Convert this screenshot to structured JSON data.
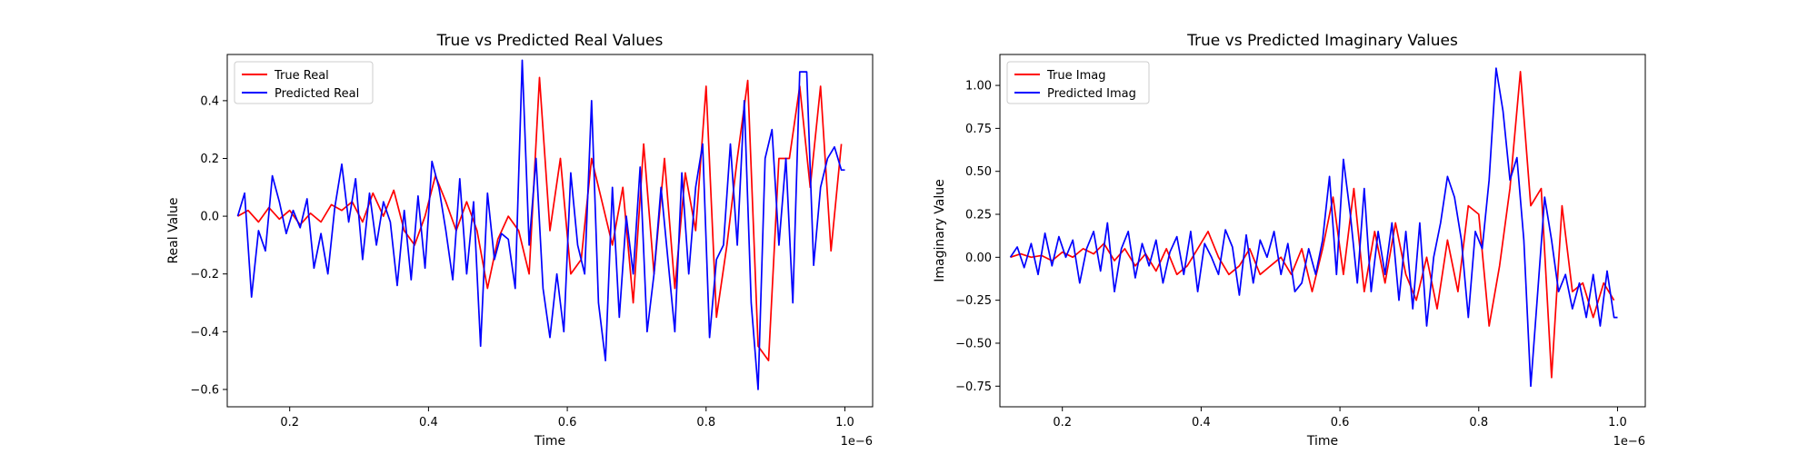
{
  "chart_data": [
    {
      "type": "line",
      "title": "True vs Predicted Real Values",
      "xlabel": "Time",
      "ylabel": "Real Value",
      "x_offset_text": "1e−6",
      "xlim": [
        0.11,
        1.04
      ],
      "ylim": [
        -0.66,
        0.56
      ],
      "xticks": [
        0.2,
        0.4,
        0.6,
        0.8,
        1.0
      ],
      "xtick_labels": [
        "0.2",
        "0.4",
        "0.6",
        "0.8",
        "1.0"
      ],
      "yticks": [
        -0.6,
        -0.4,
        -0.2,
        0.0,
        0.2,
        0.4
      ],
      "ytick_labels": [
        "−0.6",
        "−0.4",
        "−0.2",
        "0.0",
        "0.2",
        "0.4"
      ],
      "legend_position": "upper-left",
      "series": [
        {
          "name": "True Real",
          "color": "#ff0000",
          "x": [
            0.125,
            0.14,
            0.155,
            0.17,
            0.185,
            0.2,
            0.215,
            0.23,
            0.245,
            0.26,
            0.275,
            0.29,
            0.305,
            0.32,
            0.335,
            0.35,
            0.365,
            0.38,
            0.395,
            0.41,
            0.425,
            0.44,
            0.455,
            0.47,
            0.485,
            0.5,
            0.515,
            0.53,
            0.545,
            0.56,
            0.575,
            0.59,
            0.605,
            0.62,
            0.635,
            0.65,
            0.665,
            0.68,
            0.695,
            0.71,
            0.725,
            0.74,
            0.755,
            0.77,
            0.785,
            0.8,
            0.815,
            0.83,
            0.845,
            0.86,
            0.875,
            0.89,
            0.905,
            0.92,
            0.935,
            0.95,
            0.965,
            0.98,
            0.995
          ],
          "values": [
            0.0,
            0.02,
            -0.02,
            0.03,
            -0.01,
            0.02,
            -0.03,
            0.01,
            -0.02,
            0.04,
            0.02,
            0.05,
            -0.02,
            0.08,
            0.0,
            0.09,
            -0.05,
            -0.1,
            0.0,
            0.14,
            0.05,
            -0.05,
            0.05,
            -0.05,
            -0.25,
            -0.08,
            0.0,
            -0.05,
            -0.2,
            0.48,
            -0.05,
            0.2,
            -0.2,
            -0.15,
            0.2,
            0.05,
            -0.1,
            0.1,
            -0.3,
            0.25,
            -0.2,
            0.2,
            -0.25,
            0.15,
            -0.05,
            0.45,
            -0.35,
            -0.1,
            0.2,
            0.47,
            -0.45,
            -0.5,
            0.2,
            0.2,
            0.45,
            0.1,
            0.45,
            -0.12,
            0.25
          ]
        },
        {
          "name": "Predicted Real",
          "color": "#0000ff",
          "x": [
            0.125,
            0.135,
            0.145,
            0.155,
            0.165,
            0.175,
            0.185,
            0.195,
            0.205,
            0.215,
            0.225,
            0.235,
            0.245,
            0.255,
            0.265,
            0.275,
            0.285,
            0.295,
            0.305,
            0.315,
            0.325,
            0.335,
            0.345,
            0.355,
            0.365,
            0.375,
            0.385,
            0.395,
            0.405,
            0.415,
            0.425,
            0.435,
            0.445,
            0.455,
            0.465,
            0.475,
            0.485,
            0.495,
            0.505,
            0.515,
            0.525,
            0.535,
            0.545,
            0.555,
            0.565,
            0.575,
            0.585,
            0.595,
            0.605,
            0.615,
            0.625,
            0.635,
            0.645,
            0.655,
            0.665,
            0.675,
            0.685,
            0.695,
            0.705,
            0.715,
            0.725,
            0.735,
            0.745,
            0.755,
            0.765,
            0.775,
            0.785,
            0.795,
            0.805,
            0.815,
            0.825,
            0.835,
            0.845,
            0.855,
            0.865,
            0.875,
            0.885,
            0.895,
            0.905,
            0.915,
            0.925,
            0.935,
            0.945,
            0.955,
            0.965,
            0.975,
            0.985,
            0.995,
            1.0
          ],
          "values": [
            0.0,
            0.08,
            -0.28,
            -0.05,
            -0.12,
            0.14,
            0.05,
            -0.06,
            0.02,
            -0.04,
            0.06,
            -0.18,
            -0.06,
            -0.2,
            0.03,
            0.18,
            -0.02,
            0.13,
            -0.15,
            0.08,
            -0.1,
            0.05,
            -0.02,
            -0.24,
            0.02,
            -0.22,
            0.07,
            -0.18,
            0.19,
            0.1,
            -0.05,
            -0.22,
            0.13,
            -0.2,
            0.05,
            -0.45,
            0.08,
            -0.15,
            -0.06,
            -0.08,
            -0.25,
            0.54,
            -0.1,
            0.2,
            -0.25,
            -0.42,
            -0.2,
            -0.4,
            0.15,
            -0.1,
            -0.2,
            0.4,
            -0.3,
            -0.5,
            0.1,
            -0.35,
            0.0,
            -0.2,
            0.17,
            -0.4,
            -0.2,
            0.1,
            -0.15,
            -0.4,
            0.15,
            -0.2,
            0.1,
            0.25,
            -0.42,
            -0.15,
            -0.1,
            0.25,
            -0.1,
            0.4,
            -0.3,
            -0.6,
            0.2,
            0.3,
            -0.1,
            0.2,
            -0.3,
            0.5,
            0.5,
            -0.17,
            0.1,
            0.2,
            0.24,
            0.16,
            0.16
          ]
        }
      ]
    },
    {
      "type": "line",
      "title": "True vs Predicted Imaginary Values",
      "xlabel": "Time",
      "ylabel": "Imaginary Value",
      "x_offset_text": "1e−6",
      "xlim": [
        0.11,
        1.04
      ],
      "ylim": [
        -0.87,
        1.18
      ],
      "xticks": [
        0.2,
        0.4,
        0.6,
        0.8,
        1.0
      ],
      "xtick_labels": [
        "0.2",
        "0.4",
        "0.6",
        "0.8",
        "1.0"
      ],
      "yticks": [
        -0.75,
        -0.5,
        -0.25,
        0.0,
        0.25,
        0.5,
        0.75,
        1.0
      ],
      "ytick_labels": [
        "−0.75",
        "−0.50",
        "−0.25",
        "0.00",
        "0.25",
        "0.50",
        "0.75",
        "1.00"
      ],
      "legend_position": "upper-left",
      "series": [
        {
          "name": "True Imag",
          "color": "#ff0000",
          "x": [
            0.125,
            0.14,
            0.155,
            0.17,
            0.185,
            0.2,
            0.215,
            0.23,
            0.245,
            0.26,
            0.275,
            0.29,
            0.305,
            0.32,
            0.335,
            0.35,
            0.365,
            0.38,
            0.395,
            0.41,
            0.425,
            0.44,
            0.455,
            0.47,
            0.485,
            0.5,
            0.515,
            0.53,
            0.545,
            0.56,
            0.575,
            0.59,
            0.605,
            0.62,
            0.635,
            0.65,
            0.665,
            0.68,
            0.695,
            0.71,
            0.725,
            0.74,
            0.755,
            0.77,
            0.785,
            0.8,
            0.815,
            0.83,
            0.845,
            0.86,
            0.875,
            0.89,
            0.905,
            0.92,
            0.935,
            0.95,
            0.965,
            0.98,
            0.995
          ],
          "values": [
            0.0,
            0.02,
            0.0,
            0.01,
            -0.02,
            0.03,
            0.0,
            0.05,
            0.02,
            0.08,
            -0.02,
            0.05,
            -0.05,
            0.02,
            -0.08,
            0.05,
            -0.1,
            -0.05,
            0.05,
            0.15,
            0.0,
            -0.1,
            -0.05,
            0.05,
            -0.1,
            -0.05,
            0.0,
            -0.1,
            0.05,
            -0.2,
            0.05,
            0.35,
            -0.1,
            0.4,
            -0.2,
            0.15,
            -0.15,
            0.2,
            -0.1,
            -0.25,
            0.0,
            -0.3,
            0.1,
            -0.2,
            0.3,
            0.25,
            -0.4,
            -0.05,
            0.4,
            1.08,
            0.3,
            0.4,
            -0.7,
            0.3,
            -0.2,
            -0.15,
            -0.35,
            -0.15,
            -0.25
          ]
        },
        {
          "name": "Predicted Imag",
          "color": "#0000ff",
          "x": [
            0.125,
            0.135,
            0.145,
            0.155,
            0.165,
            0.175,
            0.185,
            0.195,
            0.205,
            0.215,
            0.225,
            0.235,
            0.245,
            0.255,
            0.265,
            0.275,
            0.285,
            0.295,
            0.305,
            0.315,
            0.325,
            0.335,
            0.345,
            0.355,
            0.365,
            0.375,
            0.385,
            0.395,
            0.405,
            0.415,
            0.425,
            0.435,
            0.445,
            0.455,
            0.465,
            0.475,
            0.485,
            0.495,
            0.505,
            0.515,
            0.525,
            0.535,
            0.545,
            0.555,
            0.565,
            0.575,
            0.585,
            0.595,
            0.605,
            0.615,
            0.625,
            0.635,
            0.645,
            0.655,
            0.665,
            0.675,
            0.685,
            0.695,
            0.705,
            0.715,
            0.725,
            0.735,
            0.745,
            0.755,
            0.765,
            0.775,
            0.785,
            0.795,
            0.805,
            0.815,
            0.825,
            0.835,
            0.845,
            0.855,
            0.865,
            0.875,
            0.885,
            0.895,
            0.905,
            0.915,
            0.925,
            0.935,
            0.945,
            0.955,
            0.965,
            0.975,
            0.985,
            0.995,
            1.0
          ],
          "values": [
            0.0,
            0.06,
            -0.06,
            0.08,
            -0.1,
            0.14,
            -0.05,
            0.12,
            0.0,
            0.1,
            -0.15,
            0.05,
            0.15,
            -0.08,
            0.2,
            -0.2,
            0.05,
            0.15,
            -0.12,
            0.08,
            -0.05,
            0.1,
            -0.15,
            0.03,
            0.12,
            -0.1,
            0.15,
            -0.2,
            0.08,
            0.0,
            -0.1,
            0.16,
            0.06,
            -0.22,
            0.13,
            -0.15,
            0.1,
            0.0,
            0.15,
            -0.1,
            0.08,
            -0.2,
            -0.15,
            0.05,
            -0.1,
            0.1,
            0.47,
            -0.1,
            0.57,
            0.25,
            -0.15,
            0.4,
            -0.2,
            0.15,
            -0.1,
            0.2,
            -0.25,
            0.15,
            -0.3,
            0.2,
            -0.4,
            0.0,
            0.2,
            0.47,
            0.35,
            0.1,
            -0.35,
            0.15,
            0.05,
            0.45,
            1.1,
            0.85,
            0.45,
            0.58,
            0.1,
            -0.75,
            -0.2,
            0.35,
            0.1,
            -0.2,
            -0.1,
            -0.3,
            -0.15,
            -0.35,
            -0.1,
            -0.4,
            -0.08,
            -0.35,
            -0.35
          ]
        }
      ]
    }
  ]
}
